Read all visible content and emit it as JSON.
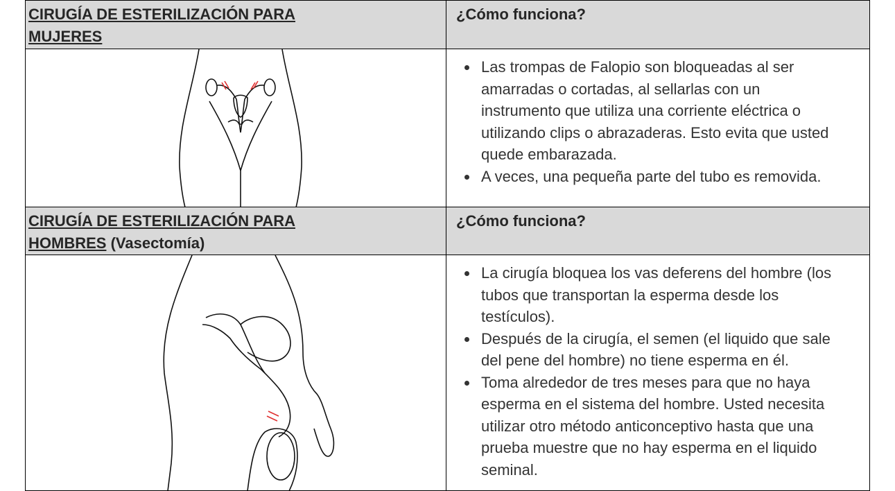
{
  "sections": [
    {
      "heading": "CIRUGÍA DE ESTERILIZACIÓN PARA MUJERES",
      "question": "¿Cómo funciona?",
      "bullets": [
        "Las trompas de Falopio son bloqueadas al ser amarradas o cortadas, al sellarlas con un instrumento que utiliza una corriente eléctrica o utilizando clips o abrazaderas. Esto evita que usted quede embarazada.",
        "A veces, una pequeña parte del tubo es removida."
      ]
    },
    {
      "heading": "CIRUGÍA DE ESTERILIZACIÓN PARA HOMBRES",
      "heading_note": "(Vasectomía)",
      "question": "¿Cómo funciona?",
      "bullets": [
        "La cirugía bloquea los vas deferens del hombre (los tubos que transportan la esperma desde los testículos).",
        "Después de la cirugía, el semen (el liquido que sale del pene del hombre) no tiene esperma en él.",
        "Toma alrededor de tres meses para que no haya esperma en el sistema del hombre. Usted necesita utilizar otro método anticonceptivo hasta que una prueba muestre que no hay esperma en el liquido seminal."
      ]
    }
  ]
}
